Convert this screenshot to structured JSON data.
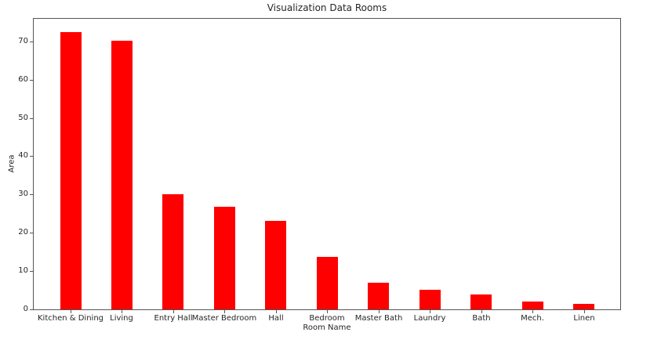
{
  "chart_data": {
    "type": "bar",
    "title": "Visualization Data Rooms",
    "xlabel": "Room Name",
    "ylabel": "Area",
    "categories": [
      "Kitchen & Dining",
      "Living",
      "Entry Hall",
      "Master Bedroom",
      "Hall",
      "Bedroom",
      "Master Bath",
      "Laundry",
      "Bath",
      "Mech.",
      "Linen"
    ],
    "values": [
      72.5,
      70.2,
      30.1,
      26.9,
      23.1,
      13.8,
      7.0,
      5.1,
      3.9,
      2.0,
      1.4
    ],
    "yticks": [
      0,
      10,
      20,
      30,
      40,
      50,
      60,
      70
    ],
    "ylim": [
      0,
      76.1
    ],
    "bar_color": "#ff0000",
    "spine_color": "#555555",
    "text_color": "#262626",
    "grid": false,
    "legend": "none"
  }
}
